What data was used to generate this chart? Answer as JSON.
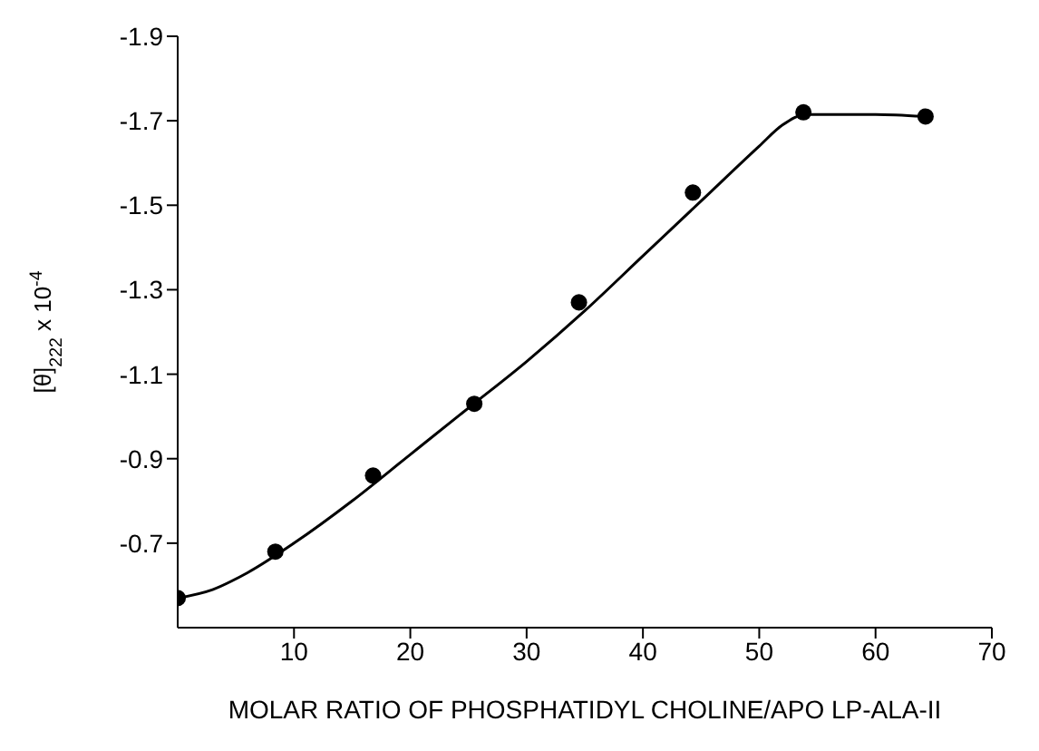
{
  "chart_data": {
    "type": "scatter",
    "xlabel": "MOLAR RATIO OF PHOSPHATIDYL CHOLINE/APO LP-ALA-II",
    "ylabel": "[θ]$_{222}$ x 10$^{-4}$",
    "xlim": [
      0,
      70
    ],
    "xticks": [
      10,
      20,
      30,
      40,
      50,
      60,
      70
    ],
    "ylim": [
      -0.5,
      -1.9
    ],
    "yticks": [
      -0.7,
      -0.9,
      -1.1,
      -1.3,
      -1.5,
      -1.7,
      -1.9
    ],
    "grid": false,
    "series": [
      {
        "color": "#000000",
        "marker": "circle",
        "x": [
          0,
          8.4,
          16.8,
          25.5,
          34.5,
          44.3,
          53.8,
          64.3
        ],
        "values": [
          -0.57,
          -0.68,
          -0.86,
          -1.03,
          -1.27,
          -1.53,
          -1.72,
          -1.71
        ]
      },
      {
        "type": "line",
        "color": "#000000",
        "marker": "none",
        "line_style": "solid",
        "x": [
          0,
          3,
          6,
          10,
          15,
          20,
          25,
          30,
          35,
          40,
          45,
          50,
          52,
          54,
          56,
          60,
          64.3
        ],
        "values": [
          -0.57,
          -0.59,
          -0.63,
          -0.7,
          -0.8,
          -0.91,
          -1.02,
          -1.13,
          -1.25,
          -1.38,
          -1.51,
          -1.64,
          -1.69,
          -1.715,
          -1.715,
          -1.715,
          -1.71
        ]
      }
    ]
  }
}
